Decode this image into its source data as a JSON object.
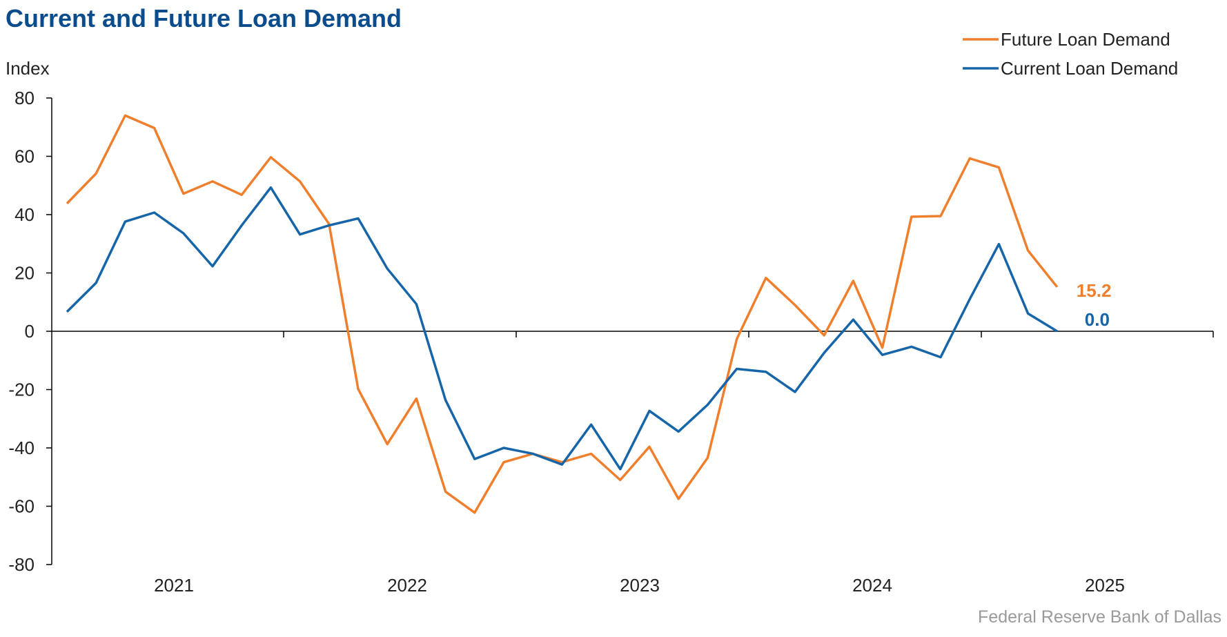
{
  "chart_data": {
    "type": "line",
    "title": "Current and Future Loan Demand",
    "ylabel": "Index",
    "xlabel": "",
    "ylim": [
      -80,
      80
    ],
    "yticks": [
      80,
      60,
      40,
      20,
      0,
      -20,
      -40,
      -60,
      -80
    ],
    "xticks": [
      "2021",
      "2022",
      "2023",
      "2024",
      "2025"
    ],
    "legend": "top-right",
    "source": "Federal Reserve Bank of Dallas",
    "series": [
      {
        "name": "Future Loan Demand",
        "color": "#f07f2d",
        "end_label": "15.2",
        "values": [
          43.8,
          54.1,
          74.0,
          69.7,
          47.2,
          51.4,
          46.8,
          59.7,
          51.4,
          36.8,
          -19.8,
          -38.7,
          -23.1,
          -55.0,
          -62.2,
          -44.9,
          -42.0,
          -44.9,
          -42.0,
          -51.0,
          -39.6,
          -57.5,
          -43.4,
          -2.7,
          18.3,
          9.0,
          -1.4,
          17.3,
          -5.6,
          39.3,
          39.5,
          59.3,
          56.2,
          27.7,
          15.2
        ]
      },
      {
        "name": "Current Loan Demand",
        "color": "#1565a8",
        "end_label": "0.0",
        "values": [
          6.7,
          16.6,
          37.6,
          40.7,
          33.6,
          22.3,
          36.3,
          49.3,
          33.2,
          36.3,
          38.7,
          21.5,
          9.3,
          -23.6,
          -43.8,
          -40.0,
          -42.0,
          -45.7,
          -32.0,
          -47.3,
          -27.3,
          -34.4,
          -25.2,
          -12.9,
          -13.9,
          -20.8,
          -7.4,
          4.0,
          -8.1,
          -5.3,
          -8.9,
          11.0,
          29.9,
          6.1,
          0.0
        ]
      }
    ]
  }
}
